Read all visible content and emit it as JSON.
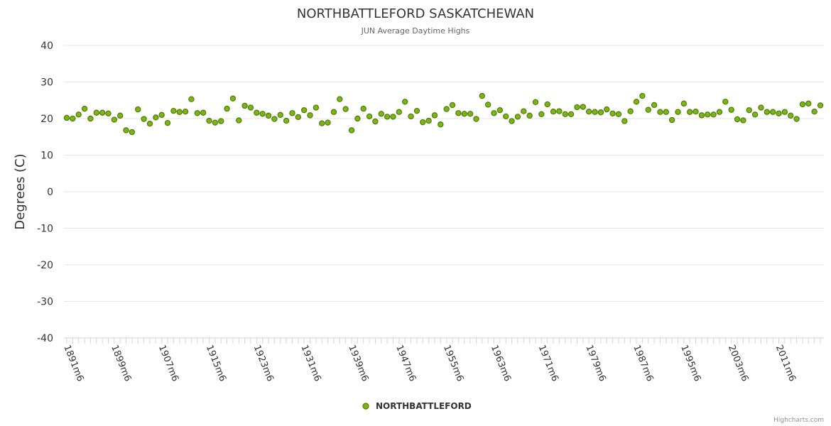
{
  "chart_data": {
    "type": "scatter",
    "title": "NORTHBATTLEFORD SASKATCHEWAN",
    "subtitle": "JUN Average Daytime Highs",
    "ylabel": "Degrees (C)",
    "xlabel": "",
    "ylim": [
      -40,
      40
    ],
    "yticks": [
      40,
      30,
      20,
      10,
      0,
      -10,
      -20,
      -30,
      -40
    ],
    "x_start_year": 1891,
    "x_label_suffix": "m6",
    "x_tick_labels": [
      "1891m6",
      "1899m6",
      "1907m6",
      "1915m6",
      "1923m6",
      "1931m6",
      "1939m6",
      "1947m6",
      "1955m6",
      "1963m6",
      "1971m6",
      "1979m6",
      "1987m6",
      "1995m6",
      "2003m6",
      "2011m6"
    ],
    "grid": true,
    "legend_position": "bottom-center",
    "series": [
      {
        "name": "NORTHBATTLEFORD",
        "color": "#7cb518",
        "values": [
          20.2,
          20.0,
          21.1,
          22.7,
          20.0,
          21.6,
          21.6,
          21.4,
          19.7,
          20.8,
          16.8,
          16.3,
          22.5,
          19.9,
          18.6,
          20.3,
          21.0,
          18.8,
          22.1,
          21.8,
          21.9,
          25.3,
          21.5,
          21.6,
          19.4,
          18.9,
          19.3,
          22.7,
          25.5,
          19.5,
          23.5,
          23.0,
          21.6,
          21.3,
          20.8,
          19.9,
          21.0,
          19.4,
          21.5,
          20.4,
          22.3,
          20.9,
          23.0,
          18.7,
          18.9,
          21.8,
          25.3,
          22.6,
          16.8,
          20.0,
          22.7,
          20.6,
          19.2,
          21.3,
          20.5,
          20.5,
          21.8,
          24.6,
          20.6,
          22.1,
          19.0,
          19.4,
          20.9,
          18.4,
          22.6,
          23.7,
          21.5,
          21.3,
          21.3,
          19.9,
          26.2,
          23.8,
          21.5,
          22.3,
          20.6,
          19.3,
          20.5,
          22.0,
          20.8,
          24.5,
          21.2,
          23.9,
          21.9,
          22.0,
          21.2,
          21.2,
          23.1,
          23.2,
          21.9,
          21.8,
          21.7,
          22.5,
          21.4,
          21.2,
          19.3,
          22.0,
          24.6,
          26.2,
          22.4,
          23.7,
          21.8,
          21.8,
          19.6,
          21.8,
          24.1,
          21.8,
          21.9,
          20.9,
          21.1,
          21.1,
          21.8,
          24.6,
          22.4,
          19.8,
          19.5,
          22.3,
          21.1,
          23.0,
          21.8,
          21.8,
          21.4,
          21.8,
          20.8,
          19.9,
          23.9,
          24.1,
          21.9,
          23.6
        ]
      }
    ],
    "credit": "Highcharts.com"
  }
}
